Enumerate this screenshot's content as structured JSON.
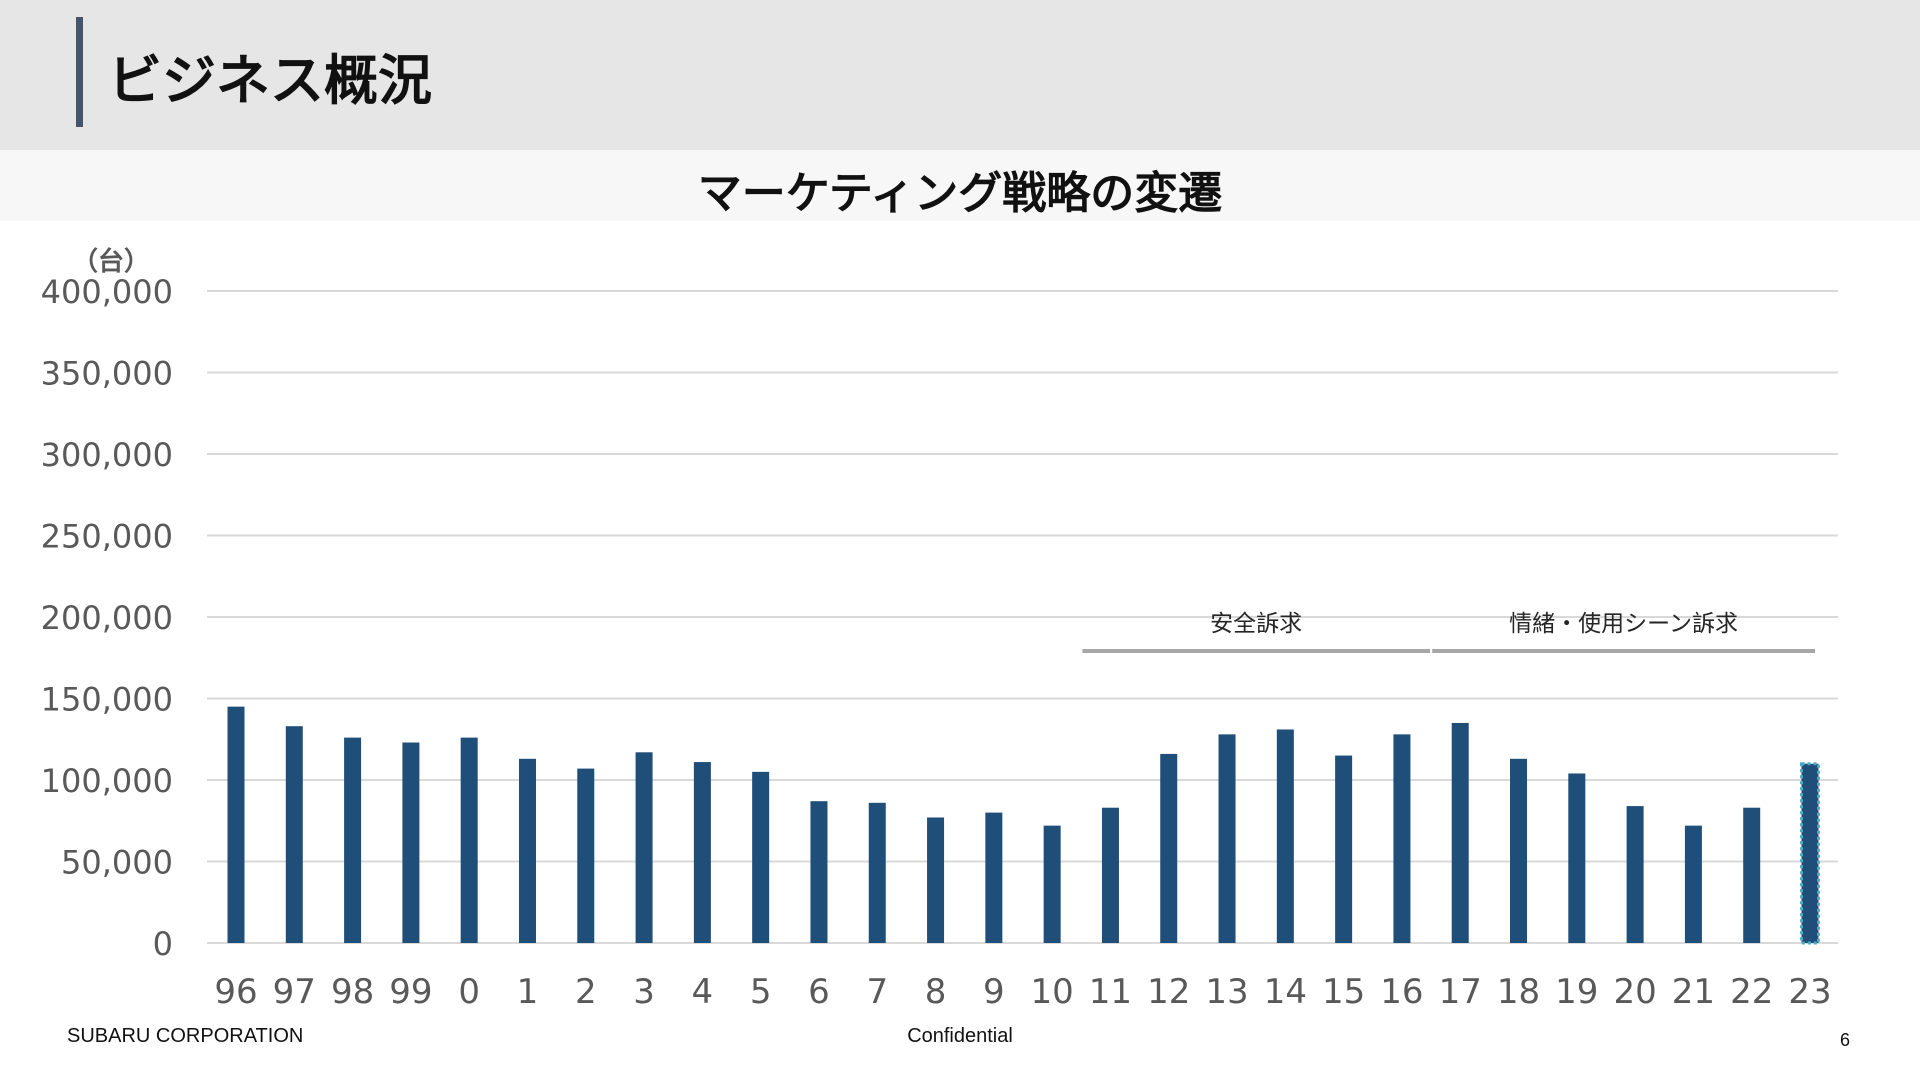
{
  "header": {
    "title": "ビジネス概況"
  },
  "subtitle": "マーケティング戦略の変遷",
  "chart_data": {
    "type": "bar",
    "title": "マーケティング戦略の変遷",
    "ylabel": "（台）",
    "xlabel": "",
    "ylim": [
      0,
      400000
    ],
    "yticks": [
      0,
      50000,
      100000,
      150000,
      200000,
      250000,
      300000,
      350000,
      400000
    ],
    "ytick_labels": [
      "0",
      "50,000",
      "100,000",
      "150,000",
      "200,000",
      "250,000",
      "300,000",
      "350,000",
      "400,000"
    ],
    "grid": true,
    "categories": [
      "96",
      "97",
      "98",
      "99",
      "0",
      "1",
      "2",
      "3",
      "4",
      "5",
      "6",
      "7",
      "8",
      "9",
      "10",
      "11",
      "12",
      "13",
      "14",
      "15",
      "16",
      "17",
      "18",
      "19",
      "20",
      "21",
      "22",
      "23"
    ],
    "values": [
      145000,
      133000,
      126000,
      123000,
      126000,
      113000,
      107000,
      117000,
      111000,
      105000,
      87000,
      86000,
      77000,
      80000,
      72000,
      83000,
      116000,
      128000,
      131000,
      115000,
      128000,
      135000,
      113000,
      104000,
      84000,
      72000,
      83000,
      110000
    ],
    "bar_color": "#1f4e79",
    "highlight_index": 27,
    "highlight_border": "#4bacc6",
    "annotations": [
      {
        "label": "安全訴求",
        "from": "11",
        "to": "16"
      },
      {
        "label": "情緒・使用シーン訴求",
        "from": "17",
        "to": "23"
      }
    ]
  },
  "footer": {
    "company": "SUBARU CORPORATION",
    "confidential": "Confidential",
    "page": "6"
  }
}
